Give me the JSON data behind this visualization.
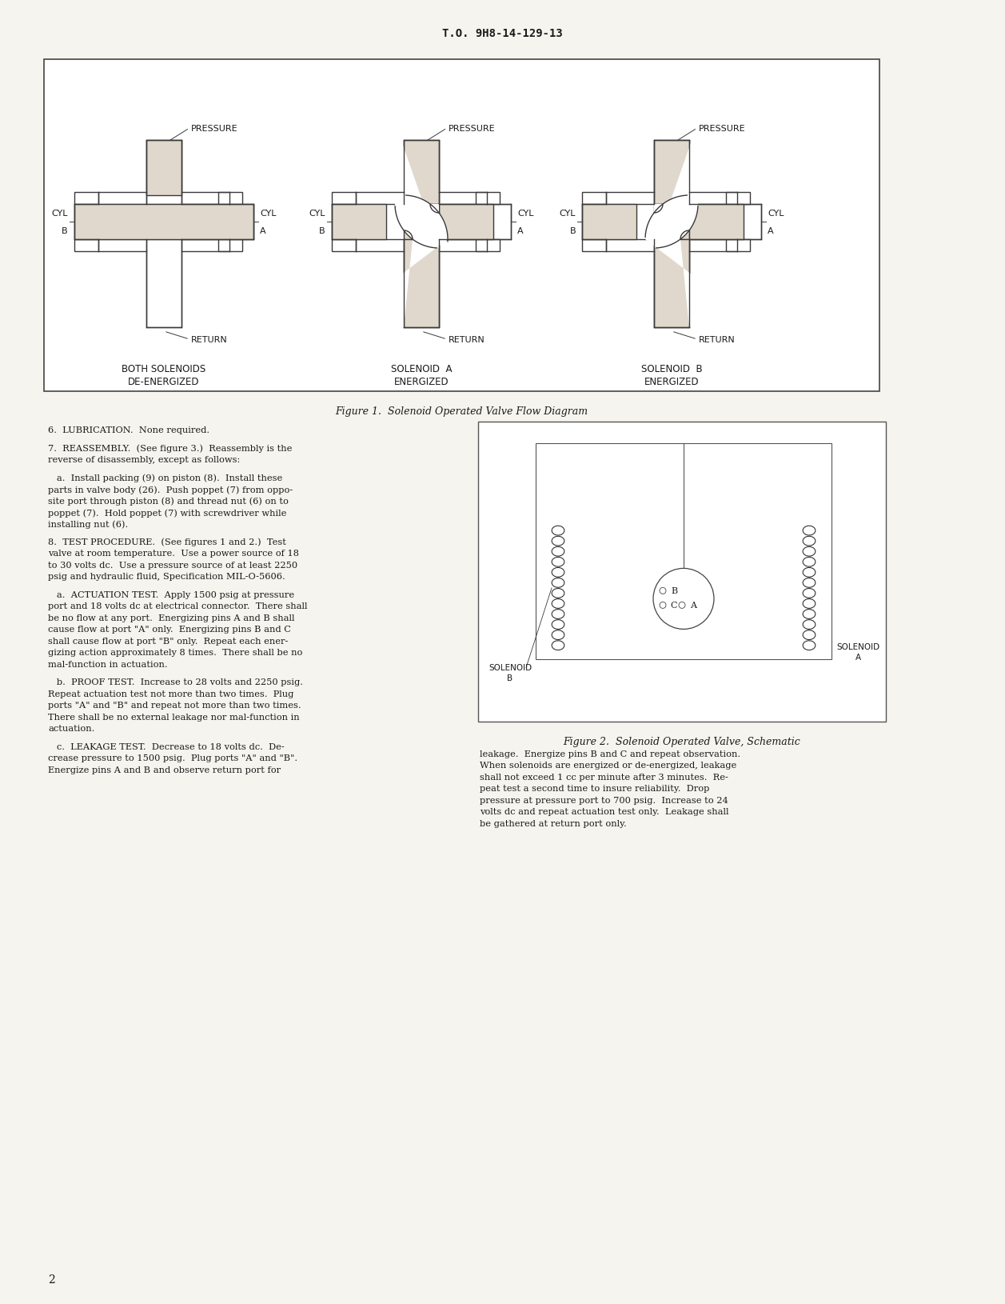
{
  "page_bg": "#f5f4ee",
  "header_text": "T.O. 9H8-14-129-13",
  "page_number": "2",
  "fig1_caption": "Figure 1.  Solenoid Operated Valve Flow Diagram",
  "fig2_caption": "Figure 2.  Solenoid Operated Valve, Schematic",
  "valve_body_color": "#e0d8cc",
  "valve_edge_color": "#3a3a3a",
  "text_color": "#1a1a1a",
  "box_edge_color": "#444444",
  "diagram_captions": [
    "BOTH SOLENOIDS\nDE-ENERGIZED",
    "SOLENOID  A\nENERGIZED",
    "SOLENOID  B\nENERGIZED"
  ],
  "body_left": [
    "6.  LUBRICATION.  None required.",
    "",
    "7.  REASSEMBLY.  (See figure 3.)  Reassembly is the\nreverse of disassembly, except as follows:",
    "",
    "   a.  Install packing (9) on piston (8).  Install these\nparts in valve body (26).  Push poppet (7) from oppo-\nsite port through piston (8) and thread nut (6) on to\npoppet (7).  Hold poppet (7) with screwdriver while\ninstalling nut (6).",
    "",
    "8.  TEST PROCEDURE.  (See figures 1 and 2.)  Test\nvalve at room temperature.  Use a power source of 18\nto 30 volts dc.  Use a pressure source of at least 2250\npsig and hydraulic fluid, Specification MIL-O-5606.",
    "",
    "   a.  ACTUATION TEST.  Apply 1500 psig at pressure\nport and 18 volts dc at electrical connector.  There shall\nbe no flow at any port.  Energizing pins A and B shall\ncause flow at port \"A\" only.  Energizing pins B and C\nshall cause flow at port \"B\" only.  Repeat each ener-\ngizing action approximately 8 times.  There shall be no\nmal-function in actuation.",
    "",
    "   b.  PROOF TEST.  Increase to 28 volts and 2250 psig.\nRepeat actuation test not more than two times.  Plug\nports \"A\" and \"B\" and repeat not more than two times.\nThere shall be no external leakage nor mal-function in\nactuation.",
    "",
    "   c.  LEAKAGE TEST.  Decrease to 18 volts dc.  De-\ncrease pressure to 1500 psig.  Plug ports \"A\" and \"B\".\nEnergize pins A and B and observe return port for"
  ],
  "body_right_cont": "leakage.  Energize pins B and C and repeat observation.\nWhen solenoids are energized or de-energized, leakage\nshall not exceed 1 cc per minute after 3 minutes.  Re-\npeat test a second time to insure reliability.  Drop\npressure at pressure port to 700 psig.  Increase to 24\nvolts dc and repeat actuation test only.  Leakage shall\nbe gathered at return port only."
}
